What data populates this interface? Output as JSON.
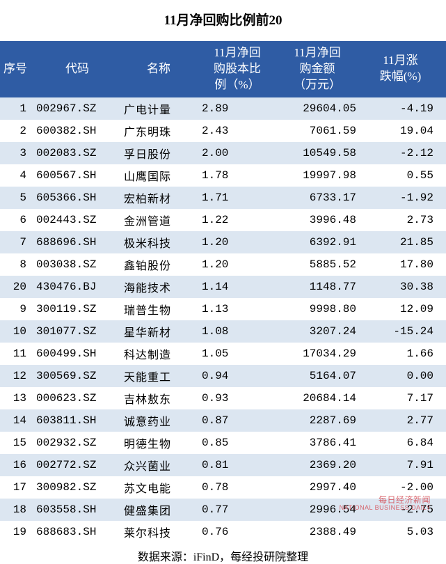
{
  "title": "11月净回购比例前20",
  "title_fontsize": 19,
  "title_color": "#000000",
  "header_bg": "#2f5ca4",
  "header_fg": "#ffffff",
  "header_fontsize": 17,
  "row_odd_bg": "#dce6f1",
  "row_even_bg": "#ffffff",
  "cell_fontsize": 16,
  "cell_color": "#000000",
  "source_text": "数据来源：iFinD，每经投研院整理",
  "source_fontsize": 16,
  "watermark_cn": "每日经济新闻",
  "watermark_en": "NATIONAL BUSINESS DAILY",
  "columns": [
    {
      "key": "seq",
      "label": "序号"
    },
    {
      "key": "code",
      "label": "代码"
    },
    {
      "key": "name",
      "label": "名称"
    },
    {
      "key": "ratio",
      "label": "11月净回\n购股本比\n例（%）"
    },
    {
      "key": "amt",
      "label": "11月净回\n购金额\n（万元）"
    },
    {
      "key": "chg",
      "label": "11月涨\n跌幅(%)"
    }
  ],
  "rows": [
    {
      "seq": "1",
      "code": "002967.SZ",
      "name": "广电计量",
      "ratio": "2.89",
      "amt": "29604.05",
      "chg": "-4.19"
    },
    {
      "seq": "2",
      "code": "600382.SH",
      "name": "广东明珠",
      "ratio": "2.43",
      "amt": "7061.59",
      "chg": "19.04"
    },
    {
      "seq": "3",
      "code": "002083.SZ",
      "name": "孚日股份",
      "ratio": "2.00",
      "amt": "10549.58",
      "chg": "-2.12"
    },
    {
      "seq": "4",
      "code": "600567.SH",
      "name": "山鹰国际",
      "ratio": "1.78",
      "amt": "19997.98",
      "chg": "0.55"
    },
    {
      "seq": "5",
      "code": "605366.SH",
      "name": "宏柏新材",
      "ratio": "1.71",
      "amt": "6733.17",
      "chg": "-1.92"
    },
    {
      "seq": "6",
      "code": "002443.SZ",
      "name": "金洲管道",
      "ratio": "1.22",
      "amt": "3996.48",
      "chg": "2.73"
    },
    {
      "seq": "7",
      "code": "688696.SH",
      "name": "极米科技",
      "ratio": "1.20",
      "amt": "6392.91",
      "chg": "21.85"
    },
    {
      "seq": "8",
      "code": "003038.SZ",
      "name": "鑫铂股份",
      "ratio": "1.20",
      "amt": "5885.52",
      "chg": "17.80"
    },
    {
      "seq": "20",
      "code": "430476.BJ",
      "name": "海能技术",
      "ratio": "1.14",
      "amt": "1148.77",
      "chg": "30.38"
    },
    {
      "seq": "9",
      "code": "300119.SZ",
      "name": "瑞普生物",
      "ratio": "1.13",
      "amt": "9998.80",
      "chg": "12.09"
    },
    {
      "seq": "10",
      "code": "301077.SZ",
      "name": "星华新材",
      "ratio": "1.08",
      "amt": "3207.24",
      "chg": "-15.24"
    },
    {
      "seq": "11",
      "code": "600499.SH",
      "name": "科达制造",
      "ratio": "1.05",
      "amt": "17034.29",
      "chg": "1.66"
    },
    {
      "seq": "12",
      "code": "300569.SZ",
      "name": "天能重工",
      "ratio": "0.94",
      "amt": "5164.07",
      "chg": "0.00"
    },
    {
      "seq": "13",
      "code": "000623.SZ",
      "name": "吉林敖东",
      "ratio": "0.93",
      "amt": "20684.14",
      "chg": "7.17"
    },
    {
      "seq": "14",
      "code": "603811.SH",
      "name": "诚意药业",
      "ratio": "0.87",
      "amt": "2287.69",
      "chg": "2.77"
    },
    {
      "seq": "15",
      "code": "002932.SZ",
      "name": "明德生物",
      "ratio": "0.85",
      "amt": "3786.41",
      "chg": "6.84"
    },
    {
      "seq": "16",
      "code": "002772.SZ",
      "name": "众兴菌业",
      "ratio": "0.81",
      "amt": "2369.20",
      "chg": "7.91"
    },
    {
      "seq": "17",
      "code": "300982.SZ",
      "name": "苏文电能",
      "ratio": "0.78",
      "amt": "2997.40",
      "chg": "-2.00"
    },
    {
      "seq": "18",
      "code": "603558.SH",
      "name": "健盛集团",
      "ratio": "0.77",
      "amt": "2996.54",
      "chg": "-2.75"
    },
    {
      "seq": "19",
      "code": "688683.SH",
      "name": "莱尔科技",
      "ratio": "0.76",
      "amt": "2388.49",
      "chg": "5.03"
    }
  ]
}
